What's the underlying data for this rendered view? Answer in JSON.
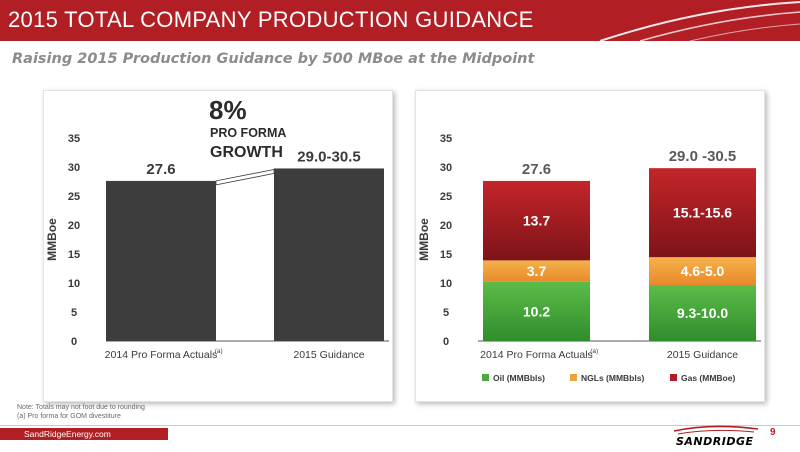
{
  "header": {
    "title": "2015 TOTAL COMPANY PRODUCTION GUIDANCE"
  },
  "subtitle": "Raising 2015 Production Guidance by 500 MBoe at the Midpoint",
  "colors": {
    "brand_red": "#b11f24",
    "bar_gray": "#3d3d3d",
    "oil": "#4aaa3e",
    "ngl": "#f0a23a",
    "gas": "#b11f24"
  },
  "growth_callout": {
    "percent": "8%",
    "line1": "PRO FORMA",
    "line2": "GROWTH"
  },
  "chart_data": [
    {
      "type": "bar",
      "ylabel": "MMBoe",
      "ylim": [
        0,
        35
      ],
      "yticks": [
        "35",
        "30",
        "25",
        "20",
        "15",
        "10",
        "5",
        "0"
      ],
      "grid": false,
      "categories": [
        "2014 Pro Forma Actuals",
        "2015 Guidance"
      ],
      "category_footnotes": [
        "(a)",
        ""
      ],
      "values": [
        27.6,
        29.75
      ],
      "data_labels": [
        "27.6",
        "29.0-30.5"
      ]
    },
    {
      "type": "bar",
      "stacked": true,
      "ylabel": "MMBoe",
      "ylim": [
        0,
        35
      ],
      "yticks": [
        "35",
        "30",
        "25",
        "20",
        "15",
        "10",
        "5",
        "0"
      ],
      "grid": false,
      "categories": [
        "2014 Pro Forma Actuals",
        "2015 Guidance"
      ],
      "category_footnotes": [
        "(a)",
        ""
      ],
      "totals": [
        "27.6",
        "29.0 -30.5"
      ],
      "legend_position": "bottom",
      "series": [
        {
          "name": "Oil (MMBbls)",
          "values": [
            10.2,
            9.65
          ],
          "labels": [
            "10.2",
            "9.3-10.0"
          ]
        },
        {
          "name": "NGLs (MMBbls)",
          "values": [
            3.7,
            4.8
          ],
          "labels": [
            "3.7",
            "4.6-5.0"
          ]
        },
        {
          "name": "Gas (MMBoe)",
          "values": [
            13.7,
            15.35
          ],
          "labels": [
            "13.7",
            "15.1-15.6"
          ]
        }
      ]
    }
  ],
  "note": {
    "line1": "Note: Totals may not foot due to rounding",
    "line2": "(a) Pro forma for GOM divestiture"
  },
  "footer": {
    "site": "SandRidgeEnergy.com",
    "logo": "SANDRIDGE",
    "page": "9"
  }
}
